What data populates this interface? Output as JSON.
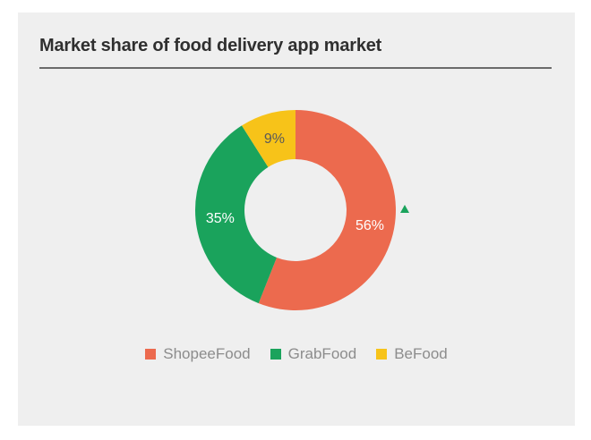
{
  "title": "Market share of food delivery app market",
  "colors": {
    "ShopeeFood": "#ec6a4e",
    "GrabFood": "#1aa35c",
    "BeFood": "#f7c319",
    "indicator": "#1aa35c"
  },
  "indicator_icon": "up-triangle-icon",
  "chart_data": {
    "type": "pie",
    "donut": true,
    "categories": [
      "ShopeeFood",
      "GrabFood",
      "BeFood"
    ],
    "values": [
      56,
      35,
      9
    ],
    "labels": [
      "56%",
      "35%",
      "9%"
    ],
    "legend": "bottom",
    "title": "Market share of food delivery app market"
  }
}
